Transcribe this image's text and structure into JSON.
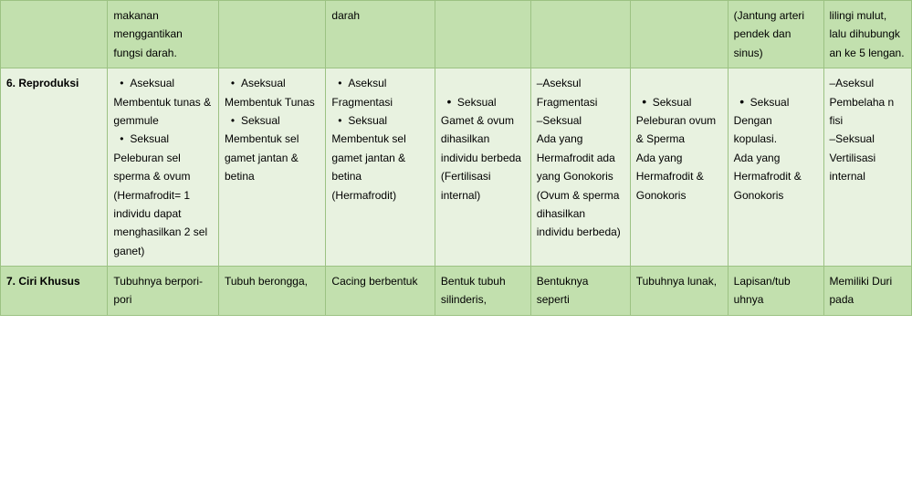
{
  "colors": {
    "header_bg": "#c2e0ae",
    "body_bg": "#e8f2e0",
    "border": "#9cc283",
    "text": "#000000"
  },
  "typography": {
    "font_family": "Verdana",
    "font_size_pt": 9,
    "line_height": 1.7
  },
  "rows": {
    "prev": {
      "label": "",
      "c1": "makanan menggantikan fungsi darah.",
      "c2": "",
      "c3": "darah",
      "c4": "",
      "c5": "",
      "c6": "",
      "c7": "(Jantung arteri pendek dan sinus)",
      "c8": "lilingi mulut, lalu dihubungk an ke 5 lengan."
    },
    "r6": {
      "label": "6. Reproduksi",
      "c1_b1": "Aseksual",
      "c1_t1": "Membentuk tunas & gemmule",
      "c1_b2": "Seksual",
      "c1_t2": "Peleburan sel sperma & ovum (Hermafrodit= 1 individu dapat menghasilkan 2 sel ganet)",
      "c2_b1": "Aseksual",
      "c2_t1": "Membentuk Tunas",
      "c2_b2": "Seksual",
      "c2_t2": "Membentuk sel gamet jantan & betina",
      "c3_b1": "Aseksul",
      "c3_t1": "Fragmentasi",
      "c3_b2": "Seksual",
      "c3_t2": "Membentuk sel gamet jantan & betina (Hermafrodit)",
      "c4_b1": "Seksual",
      "c4_gap": " ",
      "c4_t1": "Gamet & ovum dihasilkan individu berbeda (Fertilisasi internal)",
      "c5_t0": "–Aseksul Fragmentasi",
      "c5_gap": " ",
      "c5_t1": "–Seksual",
      "c5_t2": "Ada yang Hermafrodit ada yang Gonokoris (Ovum & sperma dihasilkan individu berbeda)",
      "c6_b1": "Seksual",
      "c6_gap": " ",
      "c6_t1": "Peleburan ovum & Sperma",
      "c6_t2": "Ada yang Hermafrodit & Gonokoris",
      "c7_b1": "Seksual",
      "c7_gap": " ",
      "c7_t1": "Dengan kopulasi.",
      "c7_t2": "Ada yang Hermafrodit & Gonokoris",
      "c8_t0": "–Aseksul Pembelaha n fisi",
      "c8_gap": " ",
      "c8_t1": "–Seksual Vertilisasi internal"
    },
    "r7": {
      "label": "7. Ciri Khusus",
      "c1": "Tubuhnya berpori-pori",
      "c2": "Tubuh berongga,",
      "c3": "Cacing berbentuk",
      "c4": "Bentuk tubuh silinderis,",
      "c5": "Bentuknya seperti",
      "c6": "Tubuhnya lunak,",
      "c7": "Lapisan/tub uhnya",
      "c8": "Memiliki Duri pada"
    }
  }
}
